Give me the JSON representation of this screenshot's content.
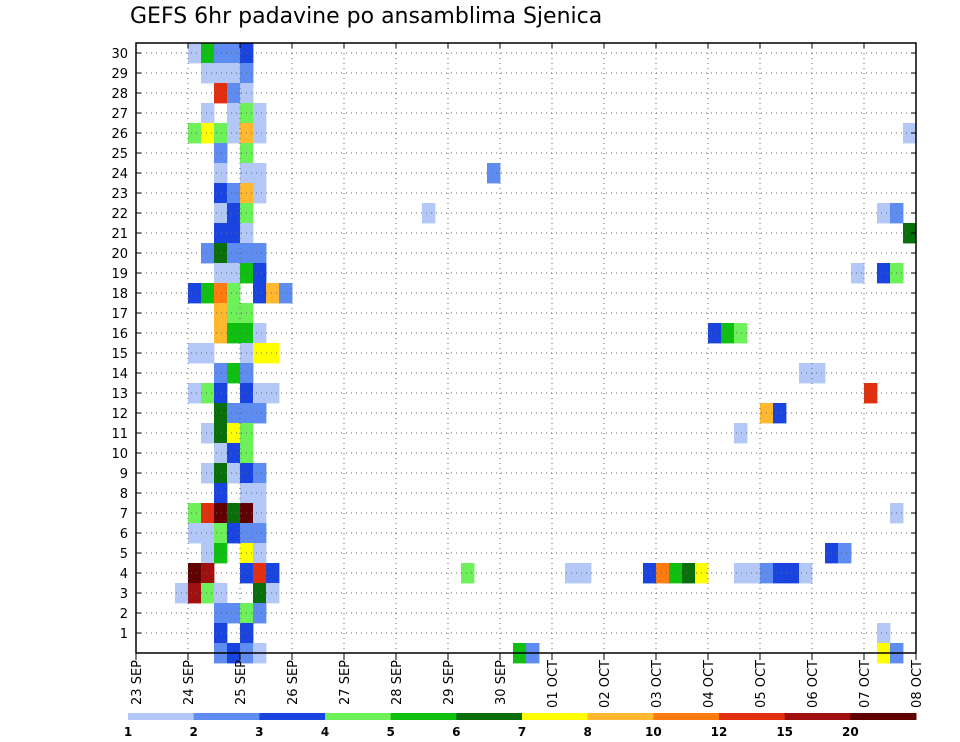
{
  "chart_data": {
    "type": "heatmap",
    "title": "GEFS 6hr padavine po ansamblima Sjenica",
    "x_labels": [
      "23 SEP",
      "24 SEP",
      "25 SEP",
      "26 SEP",
      "27 SEP",
      "28 SEP",
      "29 SEP",
      "30 SEP",
      "01 OCT",
      "02 OCT",
      "03 OCT",
      "04 OCT",
      "05 OCT",
      "06 OCT",
      "07 OCT",
      "08 OCT"
    ],
    "y_range": [
      0,
      30
    ],
    "y_ticks": [
      1,
      2,
      3,
      4,
      5,
      6,
      7,
      8,
      9,
      10,
      11,
      12,
      13,
      14,
      15,
      16,
      17,
      18,
      19,
      20,
      21,
      22,
      23,
      24,
      25,
      26,
      27,
      28,
      29,
      30
    ],
    "grid": true,
    "legend_position": "bottom",
    "legend_labels": [
      "1",
      "2",
      "3",
      "4",
      "5",
      "6",
      "7",
      "8",
      "10",
      "12",
      "15",
      "20"
    ],
    "legend_colors": [
      "#b4c8f8",
      "#5f8cf0",
      "#1a44e0",
      "#6ef05a",
      "#10c010",
      "#0a6e0a",
      "#ffff00",
      "#ffb830",
      "#ff7a10",
      "#e03010",
      "#a01010",
      "#600000"
    ],
    "cells_note_format": "[member_row, timestep_index (6h steps from 23 SEP 00z), color_class 0-11]",
    "cells": [
      [
        30,
        4,
        0
      ],
      [
        30,
        5,
        4
      ],
      [
        30,
        6,
        1
      ],
      [
        30,
        7,
        1
      ],
      [
        30,
        8,
        2
      ],
      [
        29,
        5,
        0
      ],
      [
        29,
        6,
        0
      ],
      [
        29,
        7,
        0
      ],
      [
        29,
        8,
        1
      ],
      [
        28,
        6,
        9
      ],
      [
        28,
        7,
        1
      ],
      [
        28,
        8,
        0
      ],
      [
        27,
        5,
        0
      ],
      [
        27,
        7,
        0
      ],
      [
        27,
        8,
        3
      ],
      [
        27,
        9,
        0
      ],
      [
        26,
        4,
        3
      ],
      [
        26,
        5,
        6
      ],
      [
        26,
        6,
        3
      ],
      [
        26,
        7,
        0
      ],
      [
        26,
        8,
        7
      ],
      [
        26,
        9,
        0
      ],
      [
        26,
        59,
        0
      ],
      [
        25,
        6,
        1
      ],
      [
        25,
        8,
        3
      ],
      [
        24,
        6,
        0
      ],
      [
        24,
        8,
        0
      ],
      [
        24,
        9,
        0
      ],
      [
        24,
        27,
        1
      ],
      [
        23,
        6,
        2
      ],
      [
        23,
        7,
        1
      ],
      [
        23,
        8,
        7
      ],
      [
        23,
        9,
        0
      ],
      [
        22,
        6,
        0
      ],
      [
        22,
        7,
        2
      ],
      [
        22,
        8,
        3
      ],
      [
        22,
        22,
        0
      ],
      [
        22,
        57,
        0
      ],
      [
        22,
        58,
        1
      ],
      [
        21,
        6,
        2
      ],
      [
        21,
        7,
        2
      ],
      [
        21,
        8,
        0
      ],
      [
        21,
        59,
        5
      ],
      [
        20,
        5,
        1
      ],
      [
        20,
        6,
        5
      ],
      [
        20,
        7,
        1
      ],
      [
        20,
        8,
        1
      ],
      [
        20,
        9,
        1
      ],
      [
        19,
        6,
        0
      ],
      [
        19,
        7,
        0
      ],
      [
        19,
        8,
        4
      ],
      [
        19,
        9,
        2
      ],
      [
        19,
        55,
        0
      ],
      [
        19,
        57,
        2
      ],
      [
        19,
        58,
        3
      ],
      [
        18,
        4,
        2
      ],
      [
        18,
        5,
        4
      ],
      [
        18,
        6,
        8
      ],
      [
        18,
        7,
        3
      ],
      [
        18,
        9,
        2
      ],
      [
        18,
        10,
        7
      ],
      [
        18,
        11,
        1
      ],
      [
        17,
        6,
        7
      ],
      [
        17,
        7,
        3
      ],
      [
        17,
        8,
        3
      ],
      [
        16,
        6,
        7
      ],
      [
        16,
        7,
        4
      ],
      [
        16,
        8,
        4
      ],
      [
        16,
        9,
        0
      ],
      [
        16,
        44,
        2
      ],
      [
        16,
        45,
        4
      ],
      [
        16,
        46,
        3
      ],
      [
        15,
        4,
        0
      ],
      [
        15,
        5,
        0
      ],
      [
        15,
        8,
        0
      ],
      [
        15,
        9,
        6
      ],
      [
        15,
        10,
        6
      ],
      [
        14,
        6,
        1
      ],
      [
        14,
        7,
        4
      ],
      [
        14,
        8,
        1
      ],
      [
        14,
        51,
        0
      ],
      [
        14,
        52,
        0
      ],
      [
        13,
        4,
        0
      ],
      [
        13,
        5,
        3
      ],
      [
        13,
        6,
        2
      ],
      [
        13,
        8,
        2
      ],
      [
        13,
        9,
        0
      ],
      [
        13,
        10,
        0
      ],
      [
        13,
        56,
        9
      ],
      [
        12,
        6,
        5
      ],
      [
        12,
        7,
        1
      ],
      [
        12,
        8,
        1
      ],
      [
        12,
        9,
        1
      ],
      [
        12,
        48,
        7
      ],
      [
        12,
        49,
        2
      ],
      [
        11,
        5,
        0
      ],
      [
        11,
        6,
        5
      ],
      [
        11,
        7,
        6
      ],
      [
        11,
        8,
        3
      ],
      [
        11,
        46,
        0
      ],
      [
        10,
        6,
        0
      ],
      [
        10,
        7,
        2
      ],
      [
        10,
        8,
        3
      ],
      [
        9,
        5,
        0
      ],
      [
        9,
        6,
        5
      ],
      [
        9,
        7,
        0
      ],
      [
        9,
        8,
        2
      ],
      [
        9,
        9,
        1
      ],
      [
        8,
        6,
        2
      ],
      [
        8,
        8,
        0
      ],
      [
        8,
        9,
        0
      ],
      [
        7,
        4,
        3
      ],
      [
        7,
        5,
        9
      ],
      [
        7,
        6,
        11
      ],
      [
        7,
        7,
        5
      ],
      [
        7,
        8,
        11
      ],
      [
        7,
        9,
        0
      ],
      [
        7,
        58,
        0
      ],
      [
        6,
        4,
        0
      ],
      [
        6,
        5,
        0
      ],
      [
        6,
        6,
        3
      ],
      [
        6,
        7,
        2
      ],
      [
        6,
        8,
        1
      ],
      [
        6,
        9,
        1
      ],
      [
        5,
        5,
        0
      ],
      [
        5,
        6,
        4
      ],
      [
        5,
        8,
        6
      ],
      [
        5,
        9,
        0
      ],
      [
        5,
        53,
        2
      ],
      [
        5,
        54,
        1
      ],
      [
        4,
        4,
        11
      ],
      [
        4,
        5,
        10
      ],
      [
        4,
        8,
        2
      ],
      [
        4,
        9,
        9
      ],
      [
        4,
        10,
        2
      ],
      [
        4,
        25,
        3
      ],
      [
        4,
        33,
        0
      ],
      [
        4,
        34,
        0
      ],
      [
        4,
        39,
        2
      ],
      [
        4,
        40,
        8
      ],
      [
        4,
        41,
        4
      ],
      [
        4,
        42,
        5
      ],
      [
        4,
        43,
        6
      ],
      [
        4,
        46,
        0
      ],
      [
        4,
        47,
        0
      ],
      [
        4,
        48,
        1
      ],
      [
        4,
        49,
        2
      ],
      [
        4,
        50,
        2
      ],
      [
        4,
        51,
        0
      ],
      [
        3,
        3,
        0
      ],
      [
        3,
        4,
        10
      ],
      [
        3,
        5,
        3
      ],
      [
        3,
        6,
        0
      ],
      [
        3,
        9,
        5
      ],
      [
        3,
        10,
        0
      ],
      [
        2,
        6,
        1
      ],
      [
        2,
        7,
        1
      ],
      [
        2,
        8,
        3
      ],
      [
        2,
        9,
        1
      ],
      [
        1,
        6,
        2
      ],
      [
        1,
        8,
        2
      ],
      [
        1,
        57,
        0
      ],
      [
        0,
        6,
        1
      ],
      [
        0,
        7,
        2
      ],
      [
        0,
        8,
        1
      ],
      [
        0,
        9,
        0
      ],
      [
        0,
        29,
        4
      ],
      [
        0,
        30,
        1
      ],
      [
        0,
        57,
        6
      ],
      [
        0,
        58,
        1
      ]
    ]
  }
}
